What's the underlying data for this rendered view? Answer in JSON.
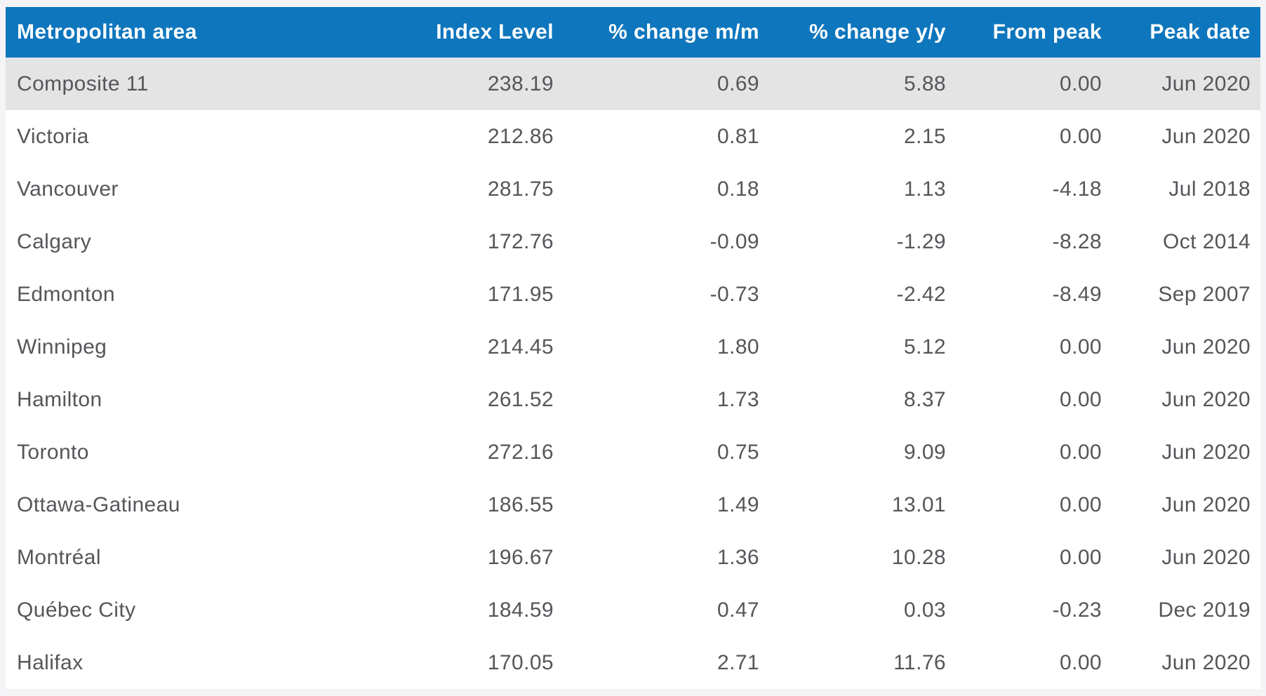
{
  "colors": {
    "header_background": "#0e76bd",
    "header_text": "#ffffff",
    "highlight_row_background": "#e4e4e5",
    "row_background": "#ffffff",
    "page_background": "#f4f4f6",
    "cell_text": "#55565a"
  },
  "table": {
    "columns": [
      {
        "label": "Metropolitan area"
      },
      {
        "label": "Index Level"
      },
      {
        "label": "% change m/m"
      },
      {
        "label": "% change y/y"
      },
      {
        "label": "From peak"
      },
      {
        "label": "Peak date"
      }
    ],
    "rows": [
      {
        "area": "Composite 11",
        "index_level": "238.19",
        "pct_change_mm": "0.69",
        "pct_change_yy": "5.88",
        "from_peak": "0.00",
        "peak_date": "Jun 2020"
      },
      {
        "area": "Victoria",
        "index_level": "212.86",
        "pct_change_mm": "0.81",
        "pct_change_yy": "2.15",
        "from_peak": "0.00",
        "peak_date": "Jun 2020"
      },
      {
        "area": "Vancouver",
        "index_level": "281.75",
        "pct_change_mm": "0.18",
        "pct_change_yy": "1.13",
        "from_peak": "-4.18",
        "peak_date": "Jul 2018"
      },
      {
        "area": "Calgary",
        "index_level": "172.76",
        "pct_change_mm": "-0.09",
        "pct_change_yy": "-1.29",
        "from_peak": "-8.28",
        "peak_date": "Oct 2014"
      },
      {
        "area": "Edmonton",
        "index_level": "171.95",
        "pct_change_mm": "-0.73",
        "pct_change_yy": "-2.42",
        "from_peak": "-8.49",
        "peak_date": "Sep 2007"
      },
      {
        "area": "Winnipeg",
        "index_level": "214.45",
        "pct_change_mm": "1.80",
        "pct_change_yy": "5.12",
        "from_peak": "0.00",
        "peak_date": "Jun 2020"
      },
      {
        "area": "Hamilton",
        "index_level": "261.52",
        "pct_change_mm": "1.73",
        "pct_change_yy": "8.37",
        "from_peak": "0.00",
        "peak_date": "Jun 2020"
      },
      {
        "area": "Toronto",
        "index_level": "272.16",
        "pct_change_mm": "0.75",
        "pct_change_yy": "9.09",
        "from_peak": "0.00",
        "peak_date": "Jun 2020"
      },
      {
        "area": "Ottawa-Gatineau",
        "index_level": "186.55",
        "pct_change_mm": "1.49",
        "pct_change_yy": "13.01",
        "from_peak": "0.00",
        "peak_date": "Jun 2020"
      },
      {
        "area": "Montréal",
        "index_level": "196.67",
        "pct_change_mm": "1.36",
        "pct_change_yy": "10.28",
        "from_peak": "0.00",
        "peak_date": "Jun 2020"
      },
      {
        "area": "Québec City",
        "index_level": "184.59",
        "pct_change_mm": "0.47",
        "pct_change_yy": "0.03",
        "from_peak": "-0.23",
        "peak_date": "Dec 2019"
      },
      {
        "area": "Halifax",
        "index_level": "170.05",
        "pct_change_mm": "2.71",
        "pct_change_yy": "11.76",
        "from_peak": "0.00",
        "peak_date": "Jun 2020"
      }
    ]
  },
  "chart_data": {
    "type": "table",
    "columns": [
      "Metropolitan area",
      "Index Level",
      "% change m/m",
      "% change y/y",
      "From peak",
      "Peak date"
    ],
    "rows": [
      [
        "Composite 11",
        238.19,
        0.69,
        5.88,
        0.0,
        "Jun 2020"
      ],
      [
        "Victoria",
        212.86,
        0.81,
        2.15,
        0.0,
        "Jun 2020"
      ],
      [
        "Vancouver",
        281.75,
        0.18,
        1.13,
        -4.18,
        "Jul 2018"
      ],
      [
        "Calgary",
        172.76,
        -0.09,
        -1.29,
        -8.28,
        "Oct 2014"
      ],
      [
        "Edmonton",
        171.95,
        -0.73,
        -2.42,
        -8.49,
        "Sep 2007"
      ],
      [
        "Winnipeg",
        214.45,
        1.8,
        5.12,
        0.0,
        "Jun 2020"
      ],
      [
        "Hamilton",
        261.52,
        1.73,
        8.37,
        0.0,
        "Jun 2020"
      ],
      [
        "Toronto",
        272.16,
        0.75,
        9.09,
        0.0,
        "Jun 2020"
      ],
      [
        "Ottawa-Gatineau",
        186.55,
        1.49,
        13.01,
        0.0,
        "Jun 2020"
      ],
      [
        "Montréal",
        196.67,
        1.36,
        10.28,
        0.0,
        "Jun 2020"
      ],
      [
        "Québec City",
        184.59,
        0.47,
        0.03,
        -0.23,
        "Dec 2019"
      ],
      [
        "Halifax",
        170.05,
        2.71,
        11.76,
        0.0,
        "Jun 2020"
      ]
    ],
    "layout": {
      "header_row": true,
      "highlighted_row": "Composite 11",
      "grid": false
    }
  }
}
